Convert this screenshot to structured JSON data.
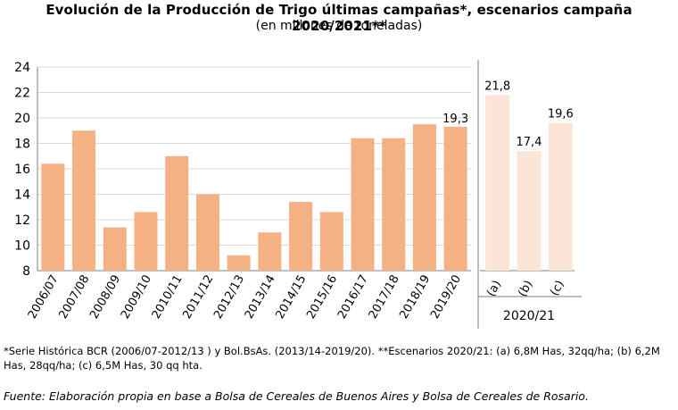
{
  "header": {
    "title": "Evolución de la Producción de Trigo últimas campañas*, escenarios campaña 2020/2021**",
    "subtitle": "(en millones de toneladas)"
  },
  "chart_data": {
    "type": "bar",
    "title": "Evolución de la Producción de Trigo últimas campañas*, escenarios campaña 2020/2021**",
    "subtitle": "(en millones de toneladas)",
    "xlabel": "",
    "ylabel": "",
    "ylim": [
      8,
      24
    ],
    "yticks": [
      8,
      10,
      12,
      14,
      16,
      18,
      20,
      22,
      24
    ],
    "grid": true,
    "legend": "none",
    "colors": {
      "historic": "#F4B183",
      "scenario": "#FBE5D6",
      "grid": "#D9D9D9",
      "axis": "#7F7F7F"
    },
    "series": [
      {
        "categories": [
          "2006/07",
          "2007/08",
          "2008/09",
          "2009/10",
          "2010/11",
          "2011/12",
          "2012/13",
          "2013/14",
          "2014/15",
          "2015/16",
          "2016/17",
          "2017/18",
          "2018/19",
          "2019/20"
        ],
        "values": [
          16.4,
          19.0,
          11.4,
          12.6,
          17.0,
          14.0,
          9.2,
          11.0,
          13.4,
          12.6,
          18.4,
          18.4,
          19.5,
          19.3
        ],
        "data_labels": [
          "",
          "",
          "",
          "",
          "",
          "",
          "",
          "",
          "",
          "",
          "",
          "",
          "",
          "19,3"
        ]
      },
      {
        "group_label": "2020/21",
        "categories": [
          "(a)",
          "(b)",
          "(c)"
        ],
        "values": [
          21.8,
          17.4,
          19.6
        ],
        "data_labels": [
          "21,8",
          "17,4",
          "19,6"
        ]
      }
    ]
  },
  "footnotes": {
    "note": "*Serie Histórica BCR (2006/07-2012/13 ) y Bol.BsAs. (2013/14-2019/20). **Escenarios 2020/21: (a) 6,8M Has, 32qq/ha; (b) 6,2M Has, 28qq/ha; (c) 6,5M Has, 30 qq hta.",
    "source": "Fuente: Elaboración propia en base a Bolsa de Cereales de Buenos Aires y Bolsa de Cereales de Rosario."
  }
}
